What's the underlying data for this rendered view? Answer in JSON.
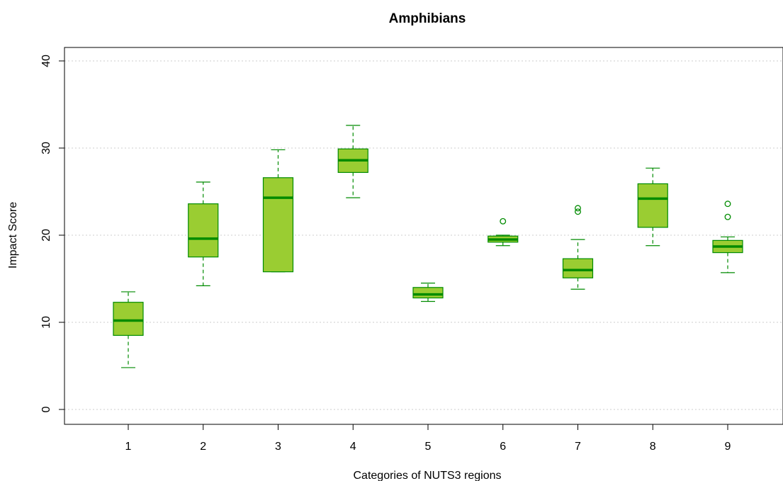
{
  "chart_data": {
    "type": "boxplot",
    "title": "Amphibians",
    "xlabel": "Categories of NUTS3 regions",
    "ylabel": "Impact Score",
    "ylim": [
      0,
      40
    ],
    "yticks": [
      0,
      10,
      20,
      30,
      40
    ],
    "grid": "horizontal dotted",
    "categories": [
      "1",
      "2",
      "3",
      "4",
      "5",
      "6",
      "7",
      "8",
      "9"
    ],
    "boxes": [
      {
        "category": "1",
        "whisker_low": 4.8,
        "q1": 8.5,
        "median": 10.2,
        "q3": 12.3,
        "whisker_high": 13.5,
        "outliers": []
      },
      {
        "category": "2",
        "whisker_low": 14.2,
        "q1": 17.5,
        "median": 19.6,
        "q3": 23.6,
        "whisker_high": 26.1,
        "outliers": []
      },
      {
        "category": "3",
        "whisker_low": 15.8,
        "q1": 15.8,
        "median": 24.3,
        "q3": 26.6,
        "whisker_high": 29.8,
        "outliers": []
      },
      {
        "category": "4",
        "whisker_low": 24.3,
        "q1": 27.2,
        "median": 28.6,
        "q3": 29.9,
        "whisker_high": 32.6,
        "outliers": []
      },
      {
        "category": "5",
        "whisker_low": 12.4,
        "q1": 12.8,
        "median": 13.2,
        "q3": 14.0,
        "whisker_high": 14.5,
        "outliers": []
      },
      {
        "category": "6",
        "whisker_low": 18.8,
        "q1": 19.2,
        "median": 19.5,
        "q3": 19.9,
        "whisker_high": 20.0,
        "outliers": [
          21.6
        ]
      },
      {
        "category": "7",
        "whisker_low": 13.8,
        "q1": 15.1,
        "median": 16.0,
        "q3": 17.3,
        "whisker_high": 19.5,
        "outliers": [
          22.7,
          23.1
        ]
      },
      {
        "category": "8",
        "whisker_low": 18.8,
        "q1": 20.9,
        "median": 24.2,
        "q3": 25.9,
        "whisker_high": 27.7,
        "outliers": []
      },
      {
        "category": "9",
        "whisker_low": 15.7,
        "q1": 18.0,
        "median": 18.7,
        "q3": 19.4,
        "whisker_high": 19.8,
        "outliers": [
          22.1,
          23.6
        ]
      }
    ],
    "colors": {
      "fill": "#9acd32",
      "line": "#008b00",
      "grid": "#cccccc",
      "axis": "#000000"
    }
  }
}
